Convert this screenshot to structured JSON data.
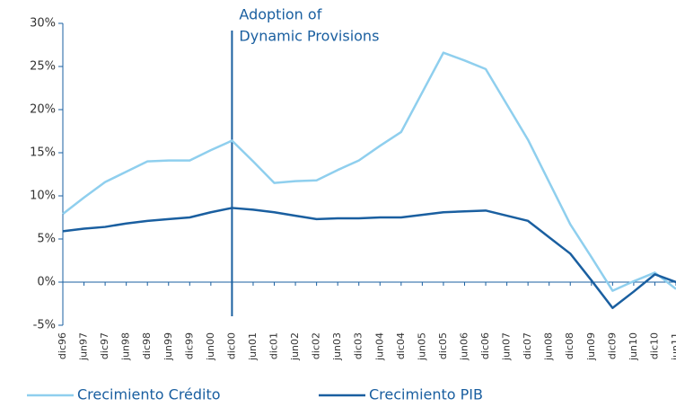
{
  "chart_data": {
    "type": "line",
    "categories": [
      "dic96",
      "jun97",
      "dic97",
      "jun98",
      "dic98",
      "jun99",
      "dic99",
      "jun00",
      "dic00",
      "jun01",
      "dic01",
      "jun02",
      "dic02",
      "jun03",
      "dic03",
      "jun04",
      "dic04",
      "jun05",
      "dic05",
      "jun06",
      "dic06",
      "jun07",
      "dic07",
      "jun08",
      "dic08",
      "jun09",
      "dic09",
      "jun10",
      "dic10",
      "jun11"
    ],
    "series": [
      {
        "name": "Crecimiento Crédito",
        "color": "#8fcfee",
        "values": [
          7.9,
          9.8,
          11.6,
          12.8,
          14.0,
          14.1,
          14.1,
          15.3,
          16.4,
          14.0,
          11.5,
          11.7,
          11.8,
          13.0,
          14.1,
          15.8,
          17.4,
          22.0,
          26.6,
          25.7,
          24.7,
          20.6,
          16.5,
          11.6,
          6.7,
          2.9,
          -1.0,
          0.1,
          1.1,
          -0.8
        ]
      },
      {
        "name": "Crecimiento PIB",
        "color": "#1a5fa0",
        "values": [
          5.9,
          6.2,
          6.4,
          6.8,
          7.1,
          7.3,
          7.5,
          8.1,
          8.6,
          8.4,
          8.1,
          7.7,
          7.3,
          7.4,
          7.4,
          7.5,
          7.5,
          7.8,
          8.1,
          8.2,
          8.3,
          7.7,
          7.1,
          5.2,
          3.3,
          0.2,
          -3.0,
          -1.1,
          0.9,
          0.0
        ]
      }
    ],
    "ylim": [
      -5,
      30
    ],
    "yticks": [
      {
        "value": -5,
        "label": "-5%"
      },
      {
        "value": 0,
        "label": "0%"
      },
      {
        "value": 5,
        "label": "5%"
      },
      {
        "value": 10,
        "label": "10%"
      },
      {
        "value": 15,
        "label": "15%"
      },
      {
        "value": 20,
        "label": "20%"
      },
      {
        "value": 25,
        "label": "25%"
      },
      {
        "value": 30,
        "label": "30%"
      }
    ],
    "grid": false,
    "legend": "bottom",
    "annotation": {
      "lines": [
        "Adoption of",
        "Dynamic Provisions"
      ],
      "category": "dic00",
      "color": "#1a5fa0"
    }
  }
}
